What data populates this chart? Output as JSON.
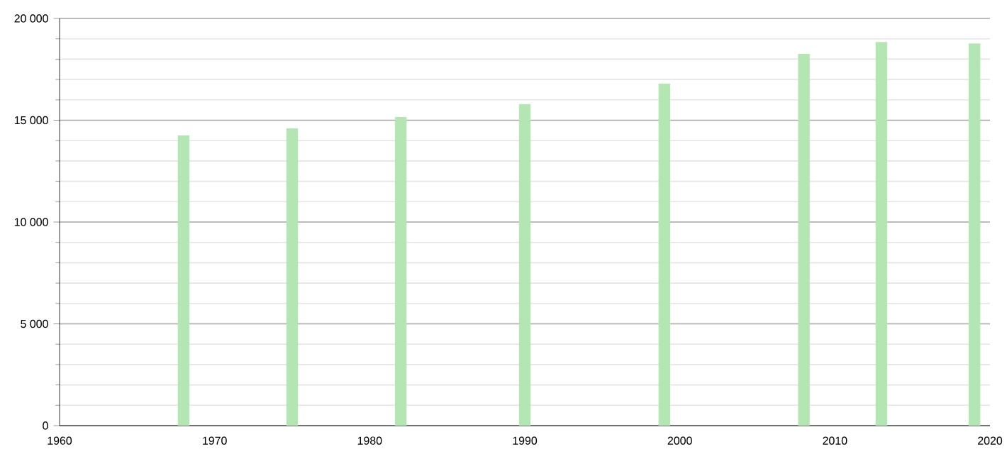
{
  "chart_data": {
    "type": "bar",
    "x": [
      1968,
      1975,
      1982,
      1990,
      1999,
      2008,
      2013,
      2019
    ],
    "values": [
      14260,
      14600,
      15160,
      15790,
      16800,
      18260,
      18840,
      18770
    ],
    "color": "#b3e6b3",
    "xlim": [
      1960,
      2020
    ],
    "xticks": [
      1960,
      1970,
      1980,
      1990,
      2000,
      2010,
      2020
    ],
    "ylim": [
      0,
      20000
    ],
    "yticks": [
      {
        "value": 0,
        "label": "0"
      },
      {
        "value": 5000,
        "label": "5 000"
      },
      {
        "value": 10000,
        "label": "10 000"
      },
      {
        "value": 15000,
        "label": "15 000"
      },
      {
        "value": 20000,
        "label": "20 000"
      }
    ],
    "grid": "y"
  }
}
